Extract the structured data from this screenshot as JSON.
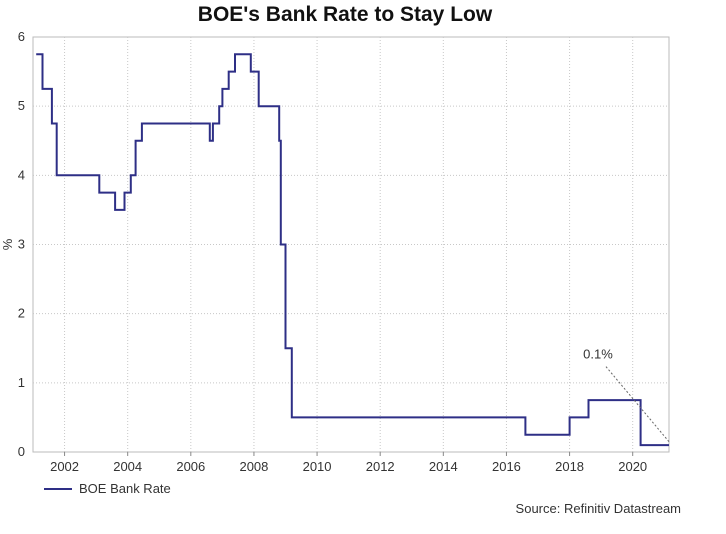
{
  "chart_data": {
    "type": "line",
    "title": "BOE's Bank Rate to Stay Low",
    "ylabel": "%",
    "xlabel": "",
    "xlim": [
      2001.0,
      2021.15
    ],
    "ylim": [
      0,
      6
    ],
    "x_ticks": [
      2002,
      2004,
      2006,
      2008,
      2010,
      2012,
      2014,
      2016,
      2018,
      2020
    ],
    "y_ticks": [
      0,
      1,
      2,
      3,
      4,
      5,
      6
    ],
    "grid": true,
    "legend_position": "bottom-left",
    "annotation": {
      "text": "0.1%",
      "x": 2020.3,
      "y": 0.1
    },
    "series": [
      {
        "name": "BOE Bank Rate",
        "color": "#2e2f86",
        "x": [
          2001.1,
          2001.3,
          2001.4,
          2001.6,
          2001.75,
          2001.9,
          2003.1,
          2003.5,
          2003.6,
          2003.9,
          2004.1,
          2004.25,
          2004.45,
          2004.6,
          2005.6,
          2006.6,
          2006.7,
          2006.9,
          2007.0,
          2007.2,
          2007.4,
          2007.55,
          2007.9,
          2007.95,
          2008.15,
          2008.35,
          2008.8,
          2008.85,
          2009.0,
          2009.2,
          2016.6,
          2018.0,
          2018.6,
          2020.25,
          2021.15
        ],
        "y": [
          5.75,
          5.25,
          5.25,
          4.75,
          4.0,
          4.0,
          3.75,
          3.75,
          3.5,
          3.75,
          4.0,
          4.5,
          4.75,
          4.75,
          4.75,
          4.5,
          4.75,
          5.0,
          5.25,
          5.5,
          5.75,
          5.75,
          5.5,
          5.5,
          5.0,
          5.0,
          4.5,
          3.0,
          1.5,
          0.5,
          0.25,
          0.5,
          0.75,
          0.1,
          0.1
        ],
        "step": "after"
      }
    ]
  },
  "legend": {
    "label": "BOE Bank Rate"
  },
  "source": "Source: Refinitiv Datastream"
}
